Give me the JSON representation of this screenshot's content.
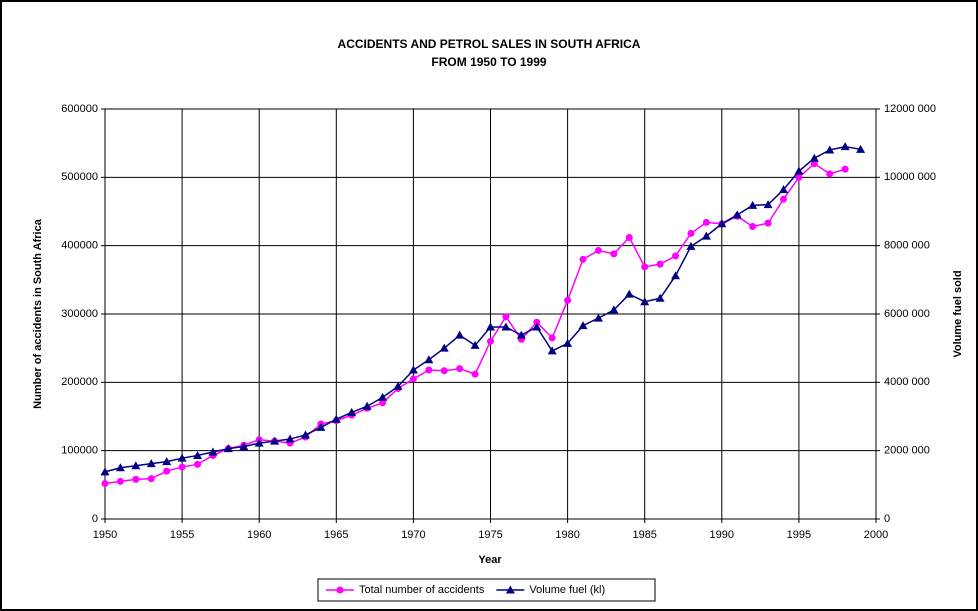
{
  "chart_data": {
    "type": "line",
    "title": "ACCIDENTS AND PETROL SALES IN SOUTH AFRICA",
    "subtitle": "FROM 1950 TO 1999",
    "x_label": "Year",
    "y_label": "Number of accidents in South Africa",
    "y2_label": "Volume fuel sold",
    "x": [
      1950,
      1951,
      1952,
      1953,
      1954,
      1955,
      1956,
      1957,
      1958,
      1959,
      1960,
      1961,
      1962,
      1963,
      1964,
      1965,
      1966,
      1967,
      1968,
      1969,
      1970,
      1971,
      1972,
      1973,
      1974,
      1975,
      1976,
      1977,
      1978,
      1979,
      1980,
      1981,
      1982,
      1983,
      1984,
      1985,
      1986,
      1987,
      1988,
      1989,
      1990,
      1991,
      1992,
      1993,
      1994,
      1995,
      1996,
      1997,
      1998,
      1999
    ],
    "xlim": [
      1950,
      2000
    ],
    "xticks": [
      1950,
      1955,
      1960,
      1965,
      1970,
      1975,
      1980,
      1985,
      1990,
      1995,
      2000
    ],
    "ylim": [
      0,
      600000
    ],
    "yticks": [
      0,
      100000,
      200000,
      300000,
      400000,
      500000,
      600000
    ],
    "y2lim": [
      0,
      12000000
    ],
    "y2ticks": [
      {
        "value": 0,
        "label": "0"
      },
      {
        "value": 2000000,
        "label": "2000 000"
      },
      {
        "value": 4000000,
        "label": "4000 000"
      },
      {
        "value": 6000000,
        "label": "6000 000"
      },
      {
        "value": 8000000,
        "label": "8000 000"
      },
      {
        "value": 10000000,
        "label": "10000 000"
      },
      {
        "value": 12000000,
        "label": "12000 000"
      }
    ],
    "grid": true,
    "legend": "bottom",
    "series": [
      {
        "name": "Total number of accidents",
        "color": "#ff00ff",
        "marker": "circle",
        "values": [
          52000,
          55000,
          58000,
          59000,
          70000,
          76000,
          80000,
          93000,
          103000,
          108000,
          116000,
          114000,
          111000,
          120000,
          139000,
          144000,
          152000,
          162000,
          170000,
          191000,
          205000,
          218000,
          217000,
          220000,
          212000,
          260000,
          296000,
          263000,
          288000,
          265000,
          320000,
          380000,
          393000,
          388000,
          412000,
          369000,
          373000,
          385000,
          418000,
          434000,
          432000,
          443000,
          428000,
          433000,
          468000,
          500000,
          520000,
          505000,
          512000,
          null
        ]
      },
      {
        "name": "Volume fuel (kl)",
        "color": "#000080",
        "marker": "triangle",
        "axis": "y2",
        "values": [
          1380000,
          1500000,
          1560000,
          1620000,
          1680000,
          1780000,
          1860000,
          1960000,
          2060000,
          2120000,
          2220000,
          2280000,
          2340000,
          2460000,
          2680000,
          2920000,
          3120000,
          3300000,
          3560000,
          3880000,
          4360000,
          4660000,
          5000000,
          5380000,
          5080000,
          5620000,
          5620000,
          5380000,
          5620000,
          4920000,
          5140000,
          5660000,
          5880000,
          6120000,
          6580000,
          6360000,
          6460000,
          7120000,
          7980000,
          8280000,
          8640000,
          8900000,
          9180000,
          9200000,
          9640000,
          10180000,
          10560000,
          10800000,
          10900000,
          10820000
        ]
      }
    ]
  }
}
